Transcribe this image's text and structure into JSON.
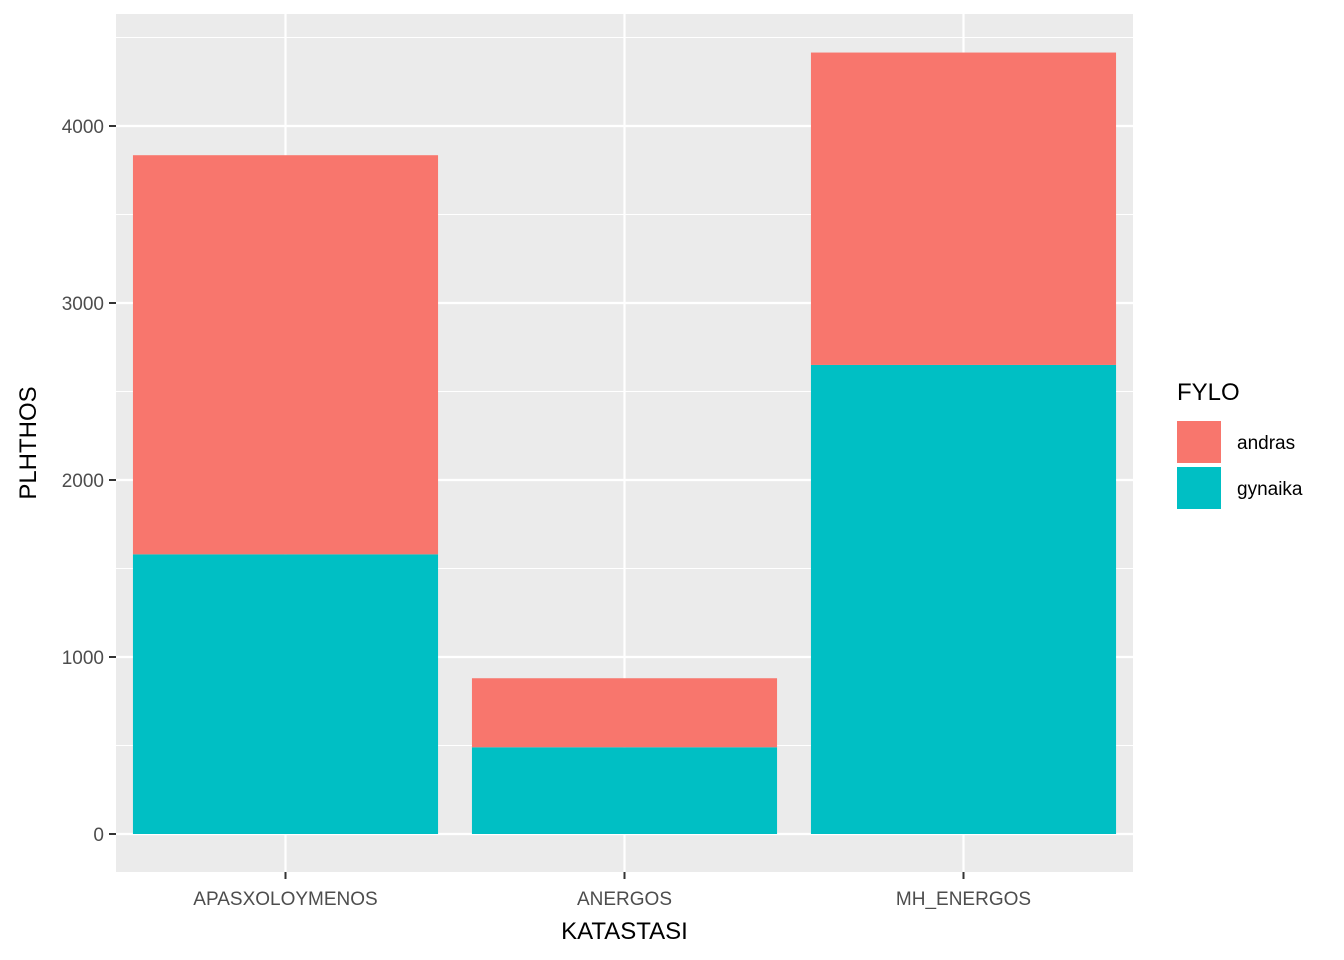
{
  "chart_data": {
    "type": "bar",
    "stacked": true,
    "title": "",
    "xlabel": "KATASTASI",
    "ylabel": "PLHTHOS",
    "categories": [
      "APASXOLOYMENOS",
      "ANERGOS",
      "MH_ENERGOS"
    ],
    "series": [
      {
        "name": "gynaika",
        "values": [
          1580,
          490,
          2650
        ],
        "color": "#00BFC4"
      },
      {
        "name": "andras",
        "values": [
          2255,
          390,
          1765
        ],
        "color": "#F8766D"
      }
    ],
    "ylim": [
      0,
      4400
    ],
    "yticks": [
      0,
      1000,
      2000,
      3000,
      4000
    ],
    "grid": true,
    "legend": {
      "title": "FYLO",
      "placement": "right",
      "items": [
        {
          "label": "andras",
          "color": "#F8766D"
        },
        {
          "label": "gynaika",
          "color": "#00BFC4"
        }
      ]
    },
    "panel_color": "#EBEBEB",
    "grid_color": "#FFFFFF"
  }
}
